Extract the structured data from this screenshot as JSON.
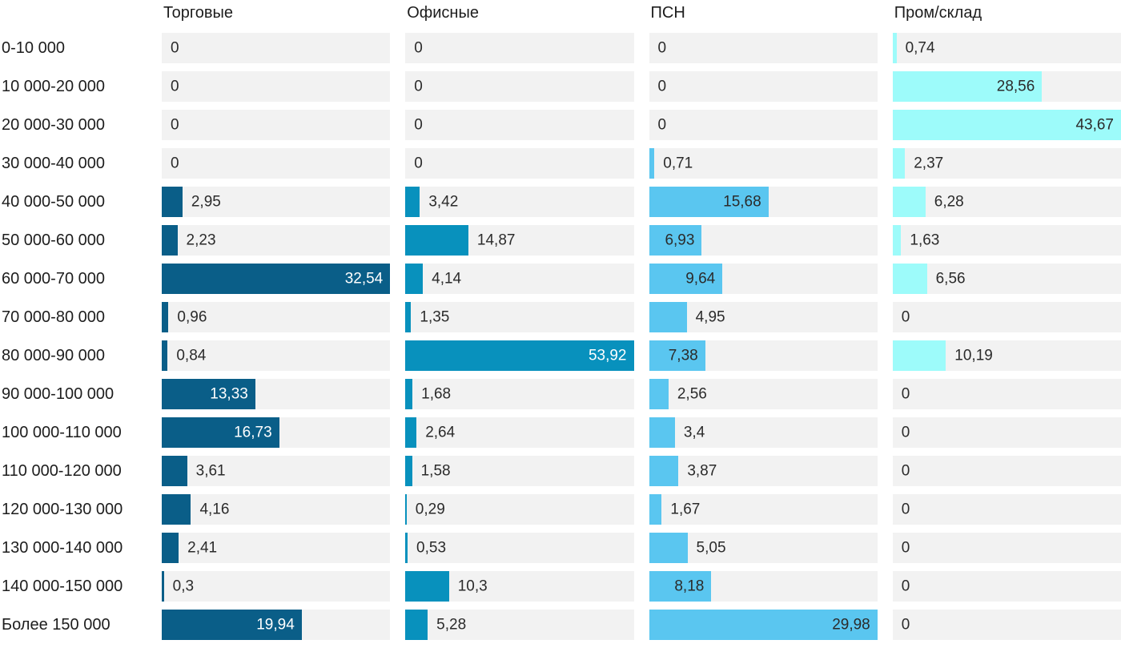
{
  "chart_data": {
    "type": "bar",
    "orientation": "horizontal",
    "value_format": "decimal-comma",
    "grid": false,
    "legend_position": "column-headers",
    "categories": [
      "0-10 000",
      "10 000-20 000",
      "20 000-30 000",
      "30 000-40 000",
      "40 000-50 000",
      "50 000-60 000",
      "60 000-70 000",
      "70 000-80 000",
      "80 000-90 000",
      "90 000-100 000",
      "100 000-110 000",
      "110 000-120 000",
      "120 000-130 000",
      "130 000-140 000",
      "140 000-150 000",
      "Более 150 000"
    ],
    "series": [
      {
        "name": "Торговые",
        "color": "#0a5e88",
        "inside_label_color": "#ffffff",
        "scale_max": 32.54,
        "values": [
          0,
          0,
          0,
          0,
          2.95,
          2.23,
          32.54,
          0.96,
          0.84,
          13.33,
          16.73,
          3.61,
          4.16,
          2.41,
          0.3,
          19.94
        ],
        "label_inside": [
          false,
          false,
          false,
          false,
          false,
          false,
          true,
          false,
          false,
          true,
          true,
          false,
          false,
          false,
          false,
          true
        ]
      },
      {
        "name": "Офисные",
        "color": "#0891bd",
        "inside_label_color": "#ffffff",
        "scale_max": 53.92,
        "values": [
          0,
          0,
          0,
          0,
          3.42,
          14.87,
          4.14,
          1.35,
          53.92,
          1.68,
          2.64,
          1.58,
          0.29,
          0.53,
          10.3,
          5.28
        ],
        "label_inside": [
          false,
          false,
          false,
          false,
          false,
          false,
          false,
          false,
          true,
          false,
          false,
          false,
          false,
          false,
          false,
          false
        ]
      },
      {
        "name": "ПСН",
        "color": "#5ac6f0",
        "inside_label_color": "#2b2b2b",
        "scale_max": 29.98,
        "values": [
          0,
          0,
          0,
          0.71,
          15.68,
          6.93,
          9.64,
          4.95,
          7.38,
          2.56,
          3.4,
          3.87,
          1.67,
          5.05,
          8.18,
          29.98
        ],
        "label_inside": [
          false,
          false,
          false,
          false,
          true,
          true,
          true,
          false,
          true,
          false,
          false,
          false,
          false,
          false,
          true,
          true
        ]
      },
      {
        "name": "Пром/склад",
        "color": "#9dfbfa",
        "inside_label_color": "#2b2b2b",
        "scale_max": 43.67,
        "values": [
          0.74,
          28.56,
          43.67,
          2.37,
          6.28,
          1.63,
          6.56,
          0,
          10.19,
          0,
          0,
          0,
          0,
          0,
          0,
          0
        ],
        "label_inside": [
          false,
          true,
          true,
          false,
          false,
          false,
          false,
          false,
          false,
          false,
          false,
          false,
          false,
          false,
          false,
          false
        ]
      }
    ],
    "colors": {
      "track": "#f2f2f2",
      "category_text": "#1d1d1d",
      "value_text": "#2b2b2b"
    }
  }
}
